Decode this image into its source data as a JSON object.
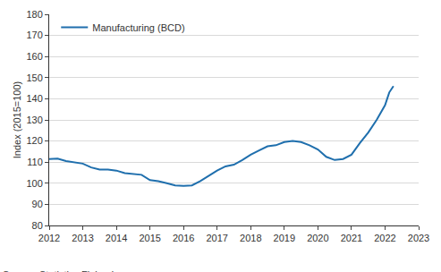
{
  "chart_data": {
    "type": "line",
    "y_label": "Index (2015=100)",
    "annotations": [
      "Source: Statistics Finland"
    ],
    "x": [
      2012,
      2012.25,
      2012.5,
      2012.75,
      2013,
      2013.25,
      2013.5,
      2013.75,
      2014,
      2014.25,
      2014.5,
      2014.75,
      2015,
      2015.25,
      2015.5,
      2015.75,
      2016,
      2016.25,
      2016.5,
      2016.75,
      2017,
      2017.25,
      2017.5,
      2017.75,
      2018,
      2018.25,
      2018.5,
      2018.75,
      2019,
      2019.25,
      2019.5,
      2019.75,
      2020,
      2020.25,
      2020.5,
      2020.75,
      2021,
      2021.25,
      2021.5,
      2021.75,
      2022,
      2022.125,
      2022.25
    ],
    "series": [
      {
        "name": "Manufacturing (BCD)",
        "color": "#1f6fad",
        "values": [
          111.5,
          111.7,
          110.5,
          110,
          109.3,
          107.5,
          106.5,
          106.5,
          106,
          104.8,
          104.5,
          104,
          101.5,
          101,
          100,
          99,
          98.8,
          99,
          101,
          103.5,
          106,
          108,
          108.8,
          111,
          113.5,
          115.5,
          117.5,
          118,
          119.5,
          120,
          119.5,
          118,
          116,
          112.5,
          111,
          111.5,
          113.5,
          119,
          124,
          130,
          137,
          143,
          146
        ]
      }
    ],
    "xlim": [
      2012,
      2023
    ],
    "xticks": [
      2012,
      2013,
      2014,
      2015,
      2016,
      2017,
      2018,
      2019,
      2020,
      2021,
      2022,
      2023
    ],
    "ylim": [
      80,
      180
    ],
    "yticks": [
      80,
      90,
      100,
      110,
      120,
      130,
      140,
      150,
      160,
      170,
      180
    ],
    "grid": true,
    "legend": "top-left"
  }
}
